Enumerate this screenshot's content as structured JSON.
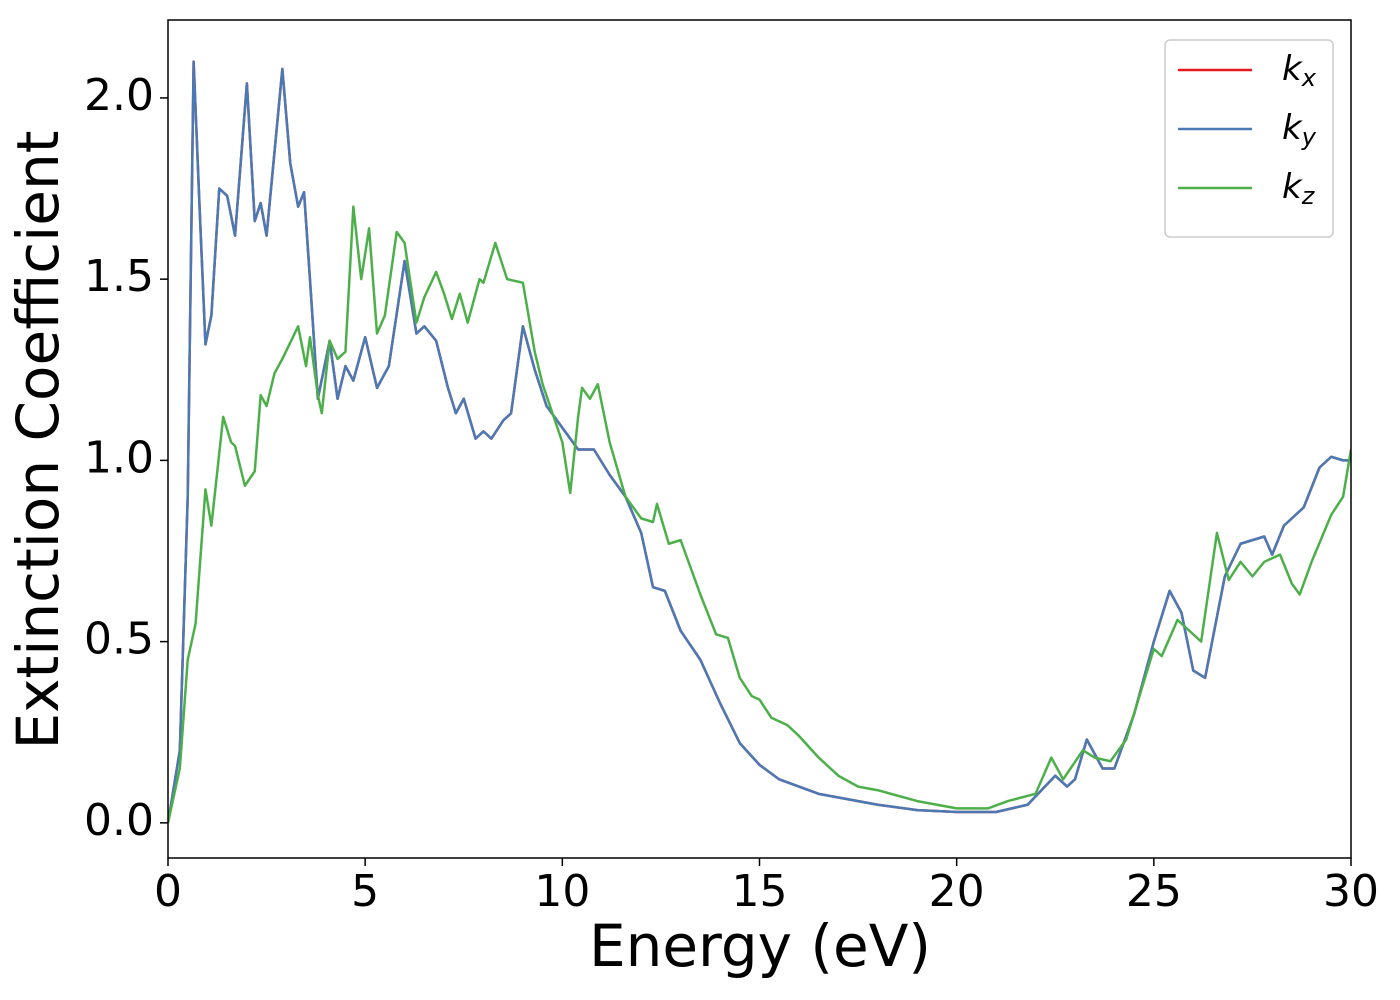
{
  "chart_data": {
    "type": "line",
    "xlabel": "Energy (eV)",
    "ylabel": "Extinction Coefficient",
    "xlim": [
      0,
      30
    ],
    "ylim": [
      -0.097,
      2.215
    ],
    "xticks": [
      0,
      5,
      10,
      15,
      20,
      25,
      30
    ],
    "yticks": [
      {
        "value": 0,
        "label": "0.0"
      },
      0.5,
      {
        "value": 1,
        "label": "1.0"
      },
      1.5,
      {
        "value": 2,
        "label": "2.0"
      }
    ],
    "legend": "upper right",
    "series": [
      {
        "name": "kx",
        "color": "#e41a1c",
        "x": [
          0,
          0.3,
          0.5,
          0.65,
          0.8,
          0.95,
          1.1,
          1.3,
          1.5,
          1.7,
          2.0,
          2.2,
          2.35,
          2.5,
          2.9,
          3.1,
          3.3,
          3.45,
          3.6,
          3.8,
          4.1,
          4.3,
          4.5,
          4.7,
          5.0,
          5.3,
          5.6,
          6.0,
          6.3,
          6.5,
          6.8,
          7.1,
          7.3,
          7.5,
          7.8,
          8.0,
          8.2,
          8.5,
          8.7,
          9.0,
          9.3,
          9.6,
          10.0,
          10.4,
          10.8,
          11.2,
          11.6,
          12.0,
          12.3,
          12.6,
          13.0,
          13.5,
          14.0,
          14.5,
          15.0,
          15.5,
          16.0,
          16.5,
          17.0,
          18.0,
          19.0,
          20.0,
          21.0,
          21.8,
          22.5,
          22.8,
          23.0,
          23.3,
          23.7,
          24.0,
          24.5,
          25.0,
          25.4,
          25.7,
          26.0,
          26.3,
          26.8,
          27.2,
          27.8,
          28.0,
          28.3,
          28.8,
          29.2,
          29.5,
          29.8,
          30.0
        ],
        "values": [
          0,
          0.2,
          0.9,
          2.1,
          1.7,
          1.32,
          1.4,
          1.75,
          1.73,
          1.62,
          2.04,
          1.66,
          1.71,
          1.62,
          2.08,
          1.82,
          1.7,
          1.74,
          1.5,
          1.17,
          1.33,
          1.17,
          1.26,
          1.22,
          1.34,
          1.2,
          1.26,
          1.55,
          1.35,
          1.37,
          1.33,
          1.2,
          1.13,
          1.17,
          1.06,
          1.08,
          1.06,
          1.11,
          1.13,
          1.37,
          1.25,
          1.15,
          1.09,
          1.03,
          1.03,
          0.96,
          0.9,
          0.8,
          0.65,
          0.64,
          0.53,
          0.45,
          0.33,
          0.22,
          0.16,
          0.12,
          0.1,
          0.08,
          0.07,
          0.05,
          0.035,
          0.03,
          0.03,
          0.05,
          0.13,
          0.1,
          0.12,
          0.23,
          0.15,
          0.15,
          0.3,
          0.5,
          0.64,
          0.58,
          0.42,
          0.4,
          0.68,
          0.77,
          0.79,
          0.74,
          0.82,
          0.87,
          0.98,
          1.01,
          1.0,
          1.0
        ]
      },
      {
        "name": "ky",
        "color": "#4a7ab5",
        "x": [
          0,
          0.3,
          0.5,
          0.65,
          0.8,
          0.95,
          1.1,
          1.3,
          1.5,
          1.7,
          2.0,
          2.2,
          2.35,
          2.5,
          2.9,
          3.1,
          3.3,
          3.45,
          3.6,
          3.8,
          4.1,
          4.3,
          4.5,
          4.7,
          5.0,
          5.3,
          5.6,
          6.0,
          6.3,
          6.5,
          6.8,
          7.1,
          7.3,
          7.5,
          7.8,
          8.0,
          8.2,
          8.5,
          8.7,
          9.0,
          9.3,
          9.6,
          10.0,
          10.4,
          10.8,
          11.2,
          11.6,
          12.0,
          12.3,
          12.6,
          13.0,
          13.5,
          14.0,
          14.5,
          15.0,
          15.5,
          16.0,
          16.5,
          17.0,
          18.0,
          19.0,
          20.0,
          21.0,
          21.8,
          22.5,
          22.8,
          23.0,
          23.3,
          23.7,
          24.0,
          24.5,
          25.0,
          25.4,
          25.7,
          26.0,
          26.3,
          26.8,
          27.2,
          27.8,
          28.0,
          28.3,
          28.8,
          29.2,
          29.5,
          29.8,
          30.0
        ],
        "values": [
          0,
          0.2,
          0.9,
          2.1,
          1.7,
          1.32,
          1.4,
          1.75,
          1.73,
          1.62,
          2.04,
          1.66,
          1.71,
          1.62,
          2.08,
          1.82,
          1.7,
          1.74,
          1.5,
          1.17,
          1.33,
          1.17,
          1.26,
          1.22,
          1.34,
          1.2,
          1.26,
          1.55,
          1.35,
          1.37,
          1.33,
          1.2,
          1.13,
          1.17,
          1.06,
          1.08,
          1.06,
          1.11,
          1.13,
          1.37,
          1.25,
          1.15,
          1.09,
          1.03,
          1.03,
          0.96,
          0.9,
          0.8,
          0.65,
          0.64,
          0.53,
          0.45,
          0.33,
          0.22,
          0.16,
          0.12,
          0.1,
          0.08,
          0.07,
          0.05,
          0.035,
          0.03,
          0.03,
          0.05,
          0.13,
          0.1,
          0.12,
          0.23,
          0.15,
          0.15,
          0.3,
          0.5,
          0.64,
          0.58,
          0.42,
          0.4,
          0.68,
          0.77,
          0.79,
          0.74,
          0.82,
          0.87,
          0.98,
          1.01,
          1.0,
          1.0
        ]
      },
      {
        "name": "kz",
        "color": "#4daf4a",
        "x": [
          0,
          0.3,
          0.5,
          0.7,
          0.95,
          1.1,
          1.4,
          1.6,
          1.7,
          1.95,
          2.2,
          2.35,
          2.5,
          2.7,
          2.9,
          3.3,
          3.5,
          3.6,
          3.8,
          3.9,
          4.1,
          4.3,
          4.5,
          4.7,
          4.9,
          5.1,
          5.3,
          5.5,
          5.8,
          6.0,
          6.3,
          6.5,
          6.8,
          7.0,
          7.2,
          7.4,
          7.6,
          7.9,
          8.0,
          8.3,
          8.6,
          9.0,
          9.3,
          9.5,
          10.0,
          10.2,
          10.4,
          10.5,
          10.7,
          10.9,
          11.2,
          11.6,
          12.0,
          12.3,
          12.4,
          12.7,
          13.0,
          13.5,
          13.9,
          14.2,
          14.5,
          14.8,
          15.0,
          15.3,
          15.7,
          16.0,
          16.5,
          17.0,
          17.5,
          18.0,
          19.0,
          20.0,
          20.8,
          21.3,
          22.0,
          22.4,
          22.7,
          23.2,
          23.5,
          23.9,
          24.3,
          25.0,
          25.2,
          25.6,
          26.0,
          26.2,
          26.6,
          26.9,
          27.2,
          27.5,
          27.8,
          28.2,
          28.5,
          28.7,
          29.0,
          29.5,
          29.8,
          30.0
        ],
        "values": [
          0,
          0.15,
          0.45,
          0.55,
          0.92,
          0.82,
          1.12,
          1.05,
          1.04,
          0.93,
          0.97,
          1.18,
          1.15,
          1.24,
          1.28,
          1.37,
          1.26,
          1.34,
          1.18,
          1.13,
          1.33,
          1.28,
          1.3,
          1.7,
          1.5,
          1.64,
          1.35,
          1.4,
          1.63,
          1.6,
          1.38,
          1.45,
          1.52,
          1.46,
          1.39,
          1.46,
          1.38,
          1.5,
          1.49,
          1.6,
          1.5,
          1.49,
          1.3,
          1.21,
          1.05,
          0.91,
          1.12,
          1.2,
          1.17,
          1.21,
          1.05,
          0.9,
          0.84,
          0.83,
          0.88,
          0.77,
          0.78,
          0.63,
          0.52,
          0.51,
          0.4,
          0.35,
          0.34,
          0.29,
          0.27,
          0.24,
          0.18,
          0.13,
          0.1,
          0.09,
          0.06,
          0.04,
          0.04,
          0.06,
          0.08,
          0.18,
          0.12,
          0.2,
          0.18,
          0.17,
          0.23,
          0.48,
          0.46,
          0.56,
          0.52,
          0.5,
          0.8,
          0.67,
          0.72,
          0.68,
          0.72,
          0.74,
          0.66,
          0.63,
          0.72,
          0.85,
          0.9,
          1.03
        ]
      }
    ]
  }
}
